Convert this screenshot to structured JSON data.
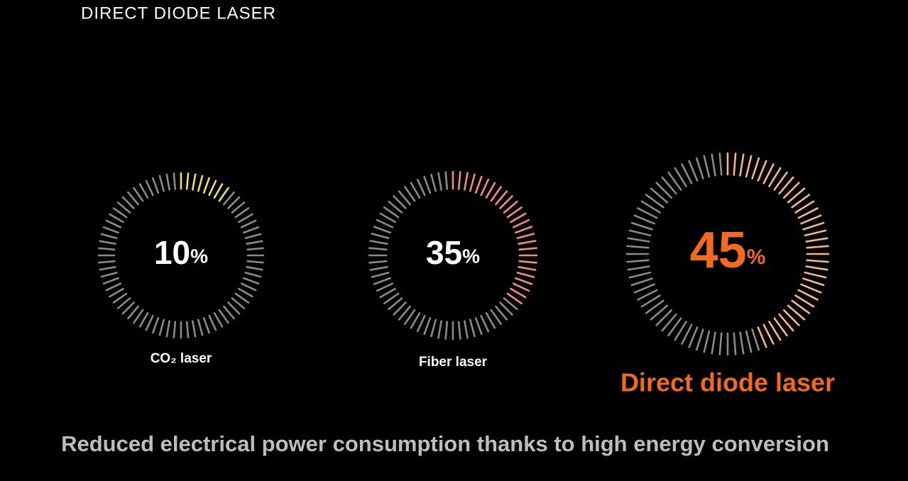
{
  "chart_data": {
    "type": "gauge",
    "title": "DIRECT DIODE LASER",
    "lim": [
      0,
      100
    ],
    "track_color": "#8a8a8a",
    "gauges": [
      {
        "name": "CO₂ laser",
        "value": 10,
        "unit": "%",
        "color": "#e6e26a",
        "text_color": "#ffffff"
      },
      {
        "name": "Fiber laser",
        "value": 35,
        "unit": "%",
        "color": "#f28a8a",
        "text_color": "#ffffff"
      },
      {
        "name": "Direct diode laser",
        "value": 45,
        "unit": "%",
        "color": "#f6b48a",
        "text_color": "#f26a21"
      }
    ],
    "caption": "Reduced electrical power consumption thanks to high energy conversion"
  }
}
